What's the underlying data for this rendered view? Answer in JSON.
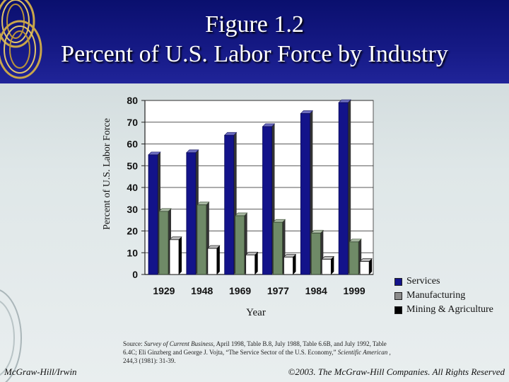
{
  "header": {
    "title_line1": "Figure 1.2",
    "title_line2": "Percent of U.S. Labor Force by Industry"
  },
  "chart_data": {
    "type": "bar",
    "categories": [
      "1929",
      "1948",
      "1969",
      "1977",
      "1984",
      "1999"
    ],
    "series": [
      {
        "name": "Services",
        "values": [
          55,
          56,
          64,
          68,
          74,
          79
        ],
        "color": "#13138a"
      },
      {
        "name": "Manufacturing",
        "values": [
          29,
          32,
          27,
          24,
          19,
          15
        ],
        "color": "#6f8a67"
      },
      {
        "name": "Mining & Agriculture",
        "values": [
          16,
          12,
          9,
          8,
          7,
          6
        ],
        "color": "#ffffff"
      }
    ],
    "xlabel": "Year",
    "ylabel": "Percent of U.S. Labor Force",
    "ylim": [
      0,
      80
    ],
    "yticks": [
      0,
      10,
      20,
      30,
      40,
      50,
      60,
      70,
      80
    ],
    "grid": true,
    "legend_position": "bottom-right"
  },
  "source": {
    "prefix": "Source: ",
    "pub1": "Survey of Current Business,",
    "text1": " April 1998, Table B.8, July 1988, Table 6.6B, and July 1992, Table 6.4C;  Eli Ginzberg and George J. Vojta, “The Service Sector of the U.S. Economy,” ",
    "pub2": "Scientific American",
    "text2": ", 244,3 (1981): 31-39."
  },
  "footer": {
    "left": "McGraw-Hill/Irwin",
    "right": "©2003. The McGraw-Hill Companies. All Rights Reserved"
  }
}
